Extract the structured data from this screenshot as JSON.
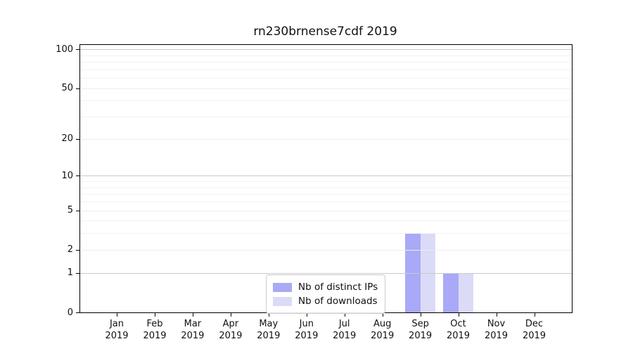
{
  "chart_data": {
    "type": "bar",
    "title": "rn230brnense7cdf 2019",
    "months": [
      "Jan",
      "Feb",
      "Mar",
      "Apr",
      "May",
      "Jun",
      "Jul",
      "Aug",
      "Sep",
      "Oct",
      "Nov",
      "Dec"
    ],
    "year": "2019",
    "series": [
      {
        "name": "Nb of distinct IPs",
        "color": "#a9a9f7",
        "values": [
          0,
          0,
          0,
          0,
          0,
          0,
          0,
          0,
          3,
          1,
          0,
          0
        ]
      },
      {
        "name": "Nb of downloads",
        "color": "#dbdbf8",
        "values": [
          0,
          0,
          0,
          0,
          0,
          0,
          0,
          0,
          3,
          1,
          0,
          0
        ]
      }
    ],
    "y_ticks": [
      0,
      1,
      2,
      5,
      10,
      20,
      50,
      100
    ],
    "y_scale": "log10(1+x)",
    "ylim": [
      0,
      108
    ],
    "xlabel": "",
    "ylabel": "",
    "gridlines": {
      "major": [
        1,
        10,
        100
      ],
      "mid": [
        2,
        5,
        20,
        50
      ],
      "minor": [
        3,
        4,
        6,
        7,
        8,
        9,
        30,
        40,
        60,
        70,
        80,
        90
      ]
    },
    "grid_colors": {
      "major": "#c9c9c9",
      "mid": "#ededed",
      "minor": "#f2f2f2"
    },
    "legend": {
      "position": "lower center-left"
    }
  }
}
